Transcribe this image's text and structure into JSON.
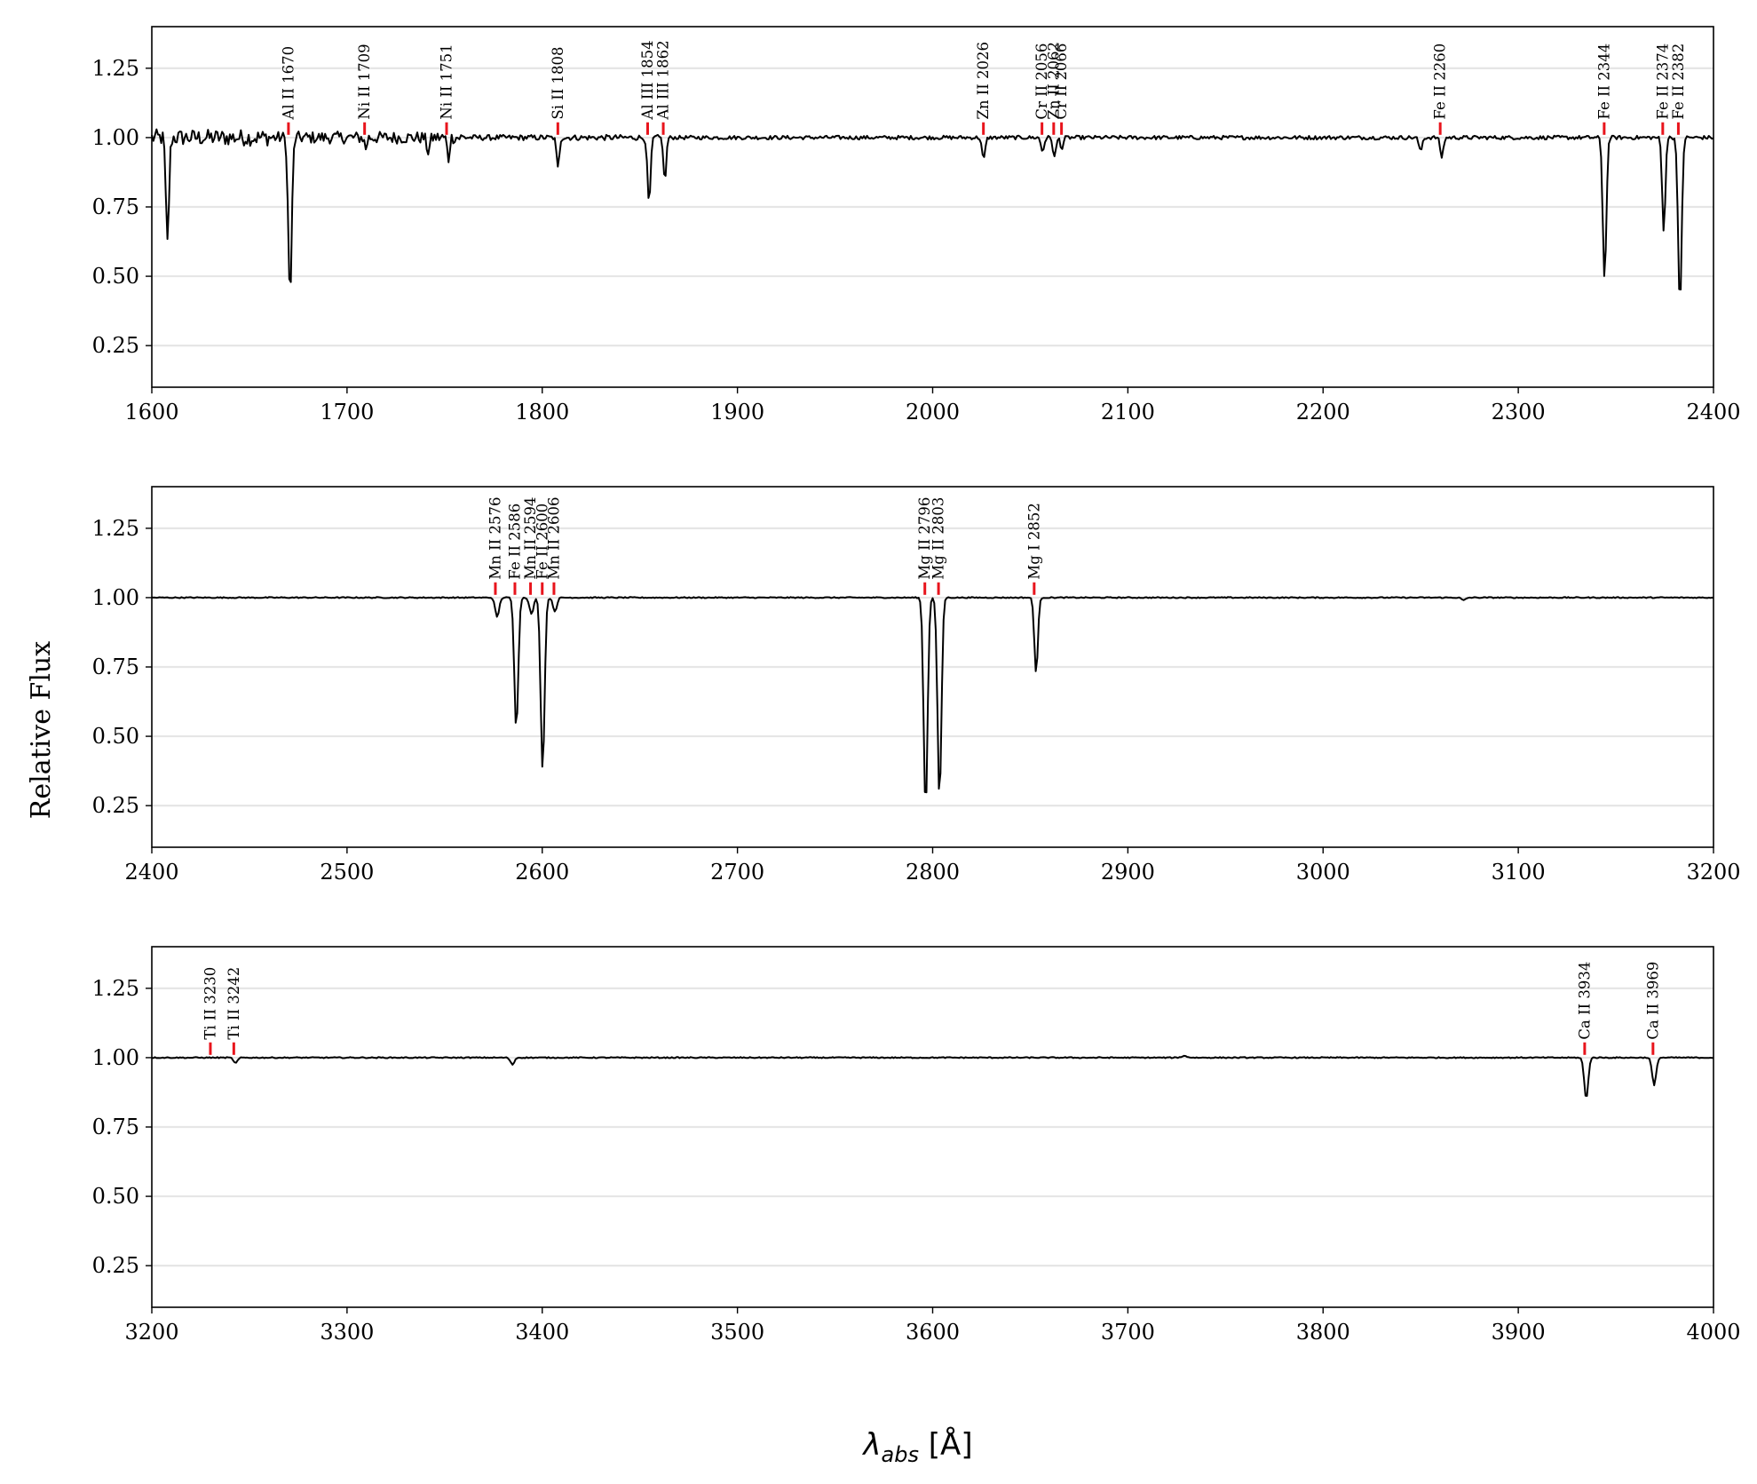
{
  "chart_data": {
    "type": "line",
    "ylabel": "Relative Flux",
    "xlabel": "λ_abs [Å]",
    "grid": "horizontal",
    "colors": {
      "spectrum": "#000000",
      "line_marker": "#e8141c",
      "grid": "#e6e6e6"
    },
    "panels": [
      {
        "xlim": [
          1600,
          2400
        ],
        "ylim": [
          0.1,
          1.4
        ],
        "xticks": [
          1600,
          1700,
          1800,
          1900,
          2000,
          2100,
          2200,
          2300,
          2400
        ],
        "yticks": [
          0.25,
          0.5,
          0.75,
          1.0,
          1.25
        ],
        "noise": 0.012,
        "lines": [
          {
            "label": "Al II 1670",
            "wavelength": 1670
          },
          {
            "label": "Ni II 1709",
            "wavelength": 1709
          },
          {
            "label": "Ni II 1751",
            "wavelength": 1751
          },
          {
            "label": "Si II 1808",
            "wavelength": 1808
          },
          {
            "label": "Al III 1854",
            "wavelength": 1854
          },
          {
            "label": "Al III 1862",
            "wavelength": 1862
          },
          {
            "label": "Zn II 2026",
            "wavelength": 2026
          },
          {
            "label": "Cr II 2056",
            "wavelength": 2056
          },
          {
            "label": "Zn II 2062",
            "wavelength": 2062
          },
          {
            "label": "Cr II 2066",
            "wavelength": 2066
          },
          {
            "label": "Fe II 2260",
            "wavelength": 2260
          },
          {
            "label": "Fe II 2344",
            "wavelength": 2344
          },
          {
            "label": "Fe II 2374",
            "wavelength": 2374
          },
          {
            "label": "Fe II 2382",
            "wavelength": 2382
          }
        ],
        "absorptions": [
          {
            "x": 1608,
            "depth": 0.38,
            "width": 0.8
          },
          {
            "x": 1670.8,
            "depth": 0.57,
            "width": 0.9
          },
          {
            "x": 1709.6,
            "depth": 0.04,
            "width": 0.6
          },
          {
            "x": 1741.6,
            "depth": 0.05,
            "width": 0.8
          },
          {
            "x": 1751.9,
            "depth": 0.08,
            "width": 0.6
          },
          {
            "x": 1808.0,
            "depth": 0.11,
            "width": 0.7
          },
          {
            "x": 1854.7,
            "depth": 0.24,
            "width": 0.8
          },
          {
            "x": 1862.8,
            "depth": 0.16,
            "width": 0.7
          },
          {
            "x": 2026.1,
            "depth": 0.08,
            "width": 0.8
          },
          {
            "x": 2056.3,
            "depth": 0.05,
            "width": 0.8
          },
          {
            "x": 2062.4,
            "depth": 0.07,
            "width": 0.8
          },
          {
            "x": 2066.2,
            "depth": 0.04,
            "width": 0.7
          },
          {
            "x": 2249.9,
            "depth": 0.05,
            "width": 0.8
          },
          {
            "x": 2260.8,
            "depth": 0.07,
            "width": 0.8
          },
          {
            "x": 2344.2,
            "depth": 0.51,
            "width": 0.9
          },
          {
            "x": 2374.5,
            "depth": 0.34,
            "width": 0.8
          },
          {
            "x": 2382.8,
            "depth": 0.61,
            "width": 0.9
          }
        ]
      },
      {
        "xlim": [
          2400,
          3200
        ],
        "ylim": [
          0.1,
          1.4
        ],
        "xticks": [
          2400,
          2500,
          2600,
          2700,
          2800,
          2900,
          3000,
          3100,
          3200
        ],
        "yticks": [
          0.25,
          0.5,
          0.75,
          1.0,
          1.25
        ],
        "noise": 0.002,
        "lines": [
          {
            "label": "Mn II 2576",
            "wavelength": 2576
          },
          {
            "label": "Fe II 2586",
            "wavelength": 2586
          },
          {
            "label": "Mn II 2594",
            "wavelength": 2594
          },
          {
            "label": "Fe II 2600",
            "wavelength": 2600
          },
          {
            "label": "Mn II 2606",
            "wavelength": 2606
          },
          {
            "label": "Mg II 2796",
            "wavelength": 2796
          },
          {
            "label": "Mg II 2803",
            "wavelength": 2803
          },
          {
            "label": "Mg I 2852",
            "wavelength": 2852
          }
        ],
        "absorptions": [
          {
            "x": 2576.9,
            "depth": 0.07,
            "width": 1.0
          },
          {
            "x": 2586.7,
            "depth": 0.47,
            "width": 1.0
          },
          {
            "x": 2594.5,
            "depth": 0.06,
            "width": 1.0
          },
          {
            "x": 2600.2,
            "depth": 0.62,
            "width": 1.0
          },
          {
            "x": 2606.5,
            "depth": 0.05,
            "width": 1.0
          },
          {
            "x": 2796.4,
            "depth": 0.76,
            "width": 1.0
          },
          {
            "x": 2803.5,
            "depth": 0.72,
            "width": 1.0
          },
          {
            "x": 2853.0,
            "depth": 0.27,
            "width": 0.9
          },
          {
            "x": 3072.0,
            "depth": 0.01,
            "width": 1.0
          }
        ]
      },
      {
        "xlim": [
          3200,
          4000
        ],
        "ylim": [
          0.1,
          1.4
        ],
        "xticks": [
          3200,
          3300,
          3400,
          3500,
          3600,
          3700,
          3800,
          3900,
          4000
        ],
        "yticks": [
          0.25,
          0.5,
          0.75,
          1.0,
          1.25
        ],
        "noise": 0.002,
        "lines": [
          {
            "label": "Ti II 3230",
            "wavelength": 3230
          },
          {
            "label": "Ti II 3242",
            "wavelength": 3242
          },
          {
            "label": "Ca II 3934",
            "wavelength": 3934
          },
          {
            "label": "Ca II 3969",
            "wavelength": 3969
          }
        ],
        "absorptions": [
          {
            "x": 3242.9,
            "depth": 0.02,
            "width": 1.0
          },
          {
            "x": 3384.7,
            "depth": 0.025,
            "width": 1.0
          },
          {
            "x": 3729.0,
            "depth": -0.006,
            "width": 1.5
          },
          {
            "x": 3934.8,
            "depth": 0.15,
            "width": 1.0
          },
          {
            "x": 3969.6,
            "depth": 0.1,
            "width": 1.0
          }
        ]
      }
    ]
  }
}
